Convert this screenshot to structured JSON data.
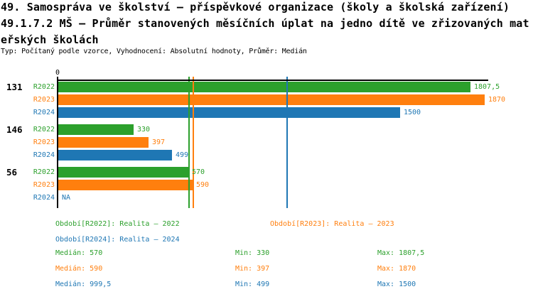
{
  "header": {
    "title_line1": "49. Samospráva ve školství – příspěvkové organizace (školy a školská zařízení)",
    "title_line2": "49.1.7.2 MŠ – Průměr stanovených měsíčních úplat na jedno dítě ve zřizovaných mat",
    "title_line3": "eřských školách",
    "subtitle": "Typ: Počítaný podle vzorce, Vyhodnocení: Absolutní hodnoty, Průměr: Medián"
  },
  "colors": {
    "series_r2022": "#2ca02c",
    "series_r2023": "#ff7f0e",
    "series_r2024": "#1f77b4",
    "axis": "#000000",
    "background": "#ffffff"
  },
  "chart_data": {
    "type": "bar",
    "orientation": "horizontal",
    "title": "49.1.7.2 MŠ – Průměr stanovených měsíčních úplat na jedno dítě ve zřizovaných mateřských školách",
    "axis": {
      "zero_label": "0",
      "xmin": 0,
      "xmax": 1885,
      "grid": "median-lines-per-series"
    },
    "categories": [
      "131",
      "146",
      "56"
    ],
    "series": [
      {
        "key": "R2022",
        "name": "Realita – 2022",
        "color": "#2ca02c",
        "median": 570,
        "min": 330,
        "max": 1807.5
      },
      {
        "key": "R2023",
        "name": "Realita – 2023",
        "color": "#ff7f0e",
        "median": 590,
        "min": 397,
        "max": 1870
      },
      {
        "key": "R2024",
        "name": "Realita – 2024",
        "color": "#1f77b4",
        "median": 999.5,
        "min": 499,
        "max": 1500
      }
    ],
    "groups": [
      {
        "label": "131",
        "values": [
          1807.5,
          1870,
          1500
        ],
        "displays": [
          "1807,5",
          "1870",
          "1500"
        ]
      },
      {
        "label": "146",
        "values": [
          330,
          397,
          499
        ],
        "displays": [
          "330",
          "397",
          "499"
        ]
      },
      {
        "label": "56",
        "values": [
          570,
          590,
          null
        ],
        "displays": [
          "570",
          "590",
          "NA"
        ]
      }
    ],
    "legend": [
      {
        "series": "R2022",
        "label": "Období[R2022]: Realita – 2022"
      },
      {
        "series": "R2023",
        "label": "Období[R2023]: Realita – 2023"
      },
      {
        "series": "R2024",
        "label": "Období[R2024]: Realita – 2024"
      }
    ],
    "stats": [
      {
        "series": "R2022",
        "median_label": "Medián: 570",
        "min_label": "Min: 330",
        "max_label": "Max: 1807,5"
      },
      {
        "series": "R2023",
        "median_label": "Medián: 590",
        "min_label": "Min: 397",
        "max_label": "Max: 1870"
      },
      {
        "series": "R2024",
        "median_label": "Medián: 999,5",
        "min_label": "Min: 499",
        "max_label": "Max: 1500"
      }
    ],
    "medians": [
      {
        "series": "R2022",
        "value": 570,
        "color": "#2ca02c"
      },
      {
        "series": "R2023",
        "value": 590,
        "color": "#ff7f0e"
      },
      {
        "series": "R2024",
        "value": 999.5,
        "color": "#1f77b4"
      }
    ]
  }
}
